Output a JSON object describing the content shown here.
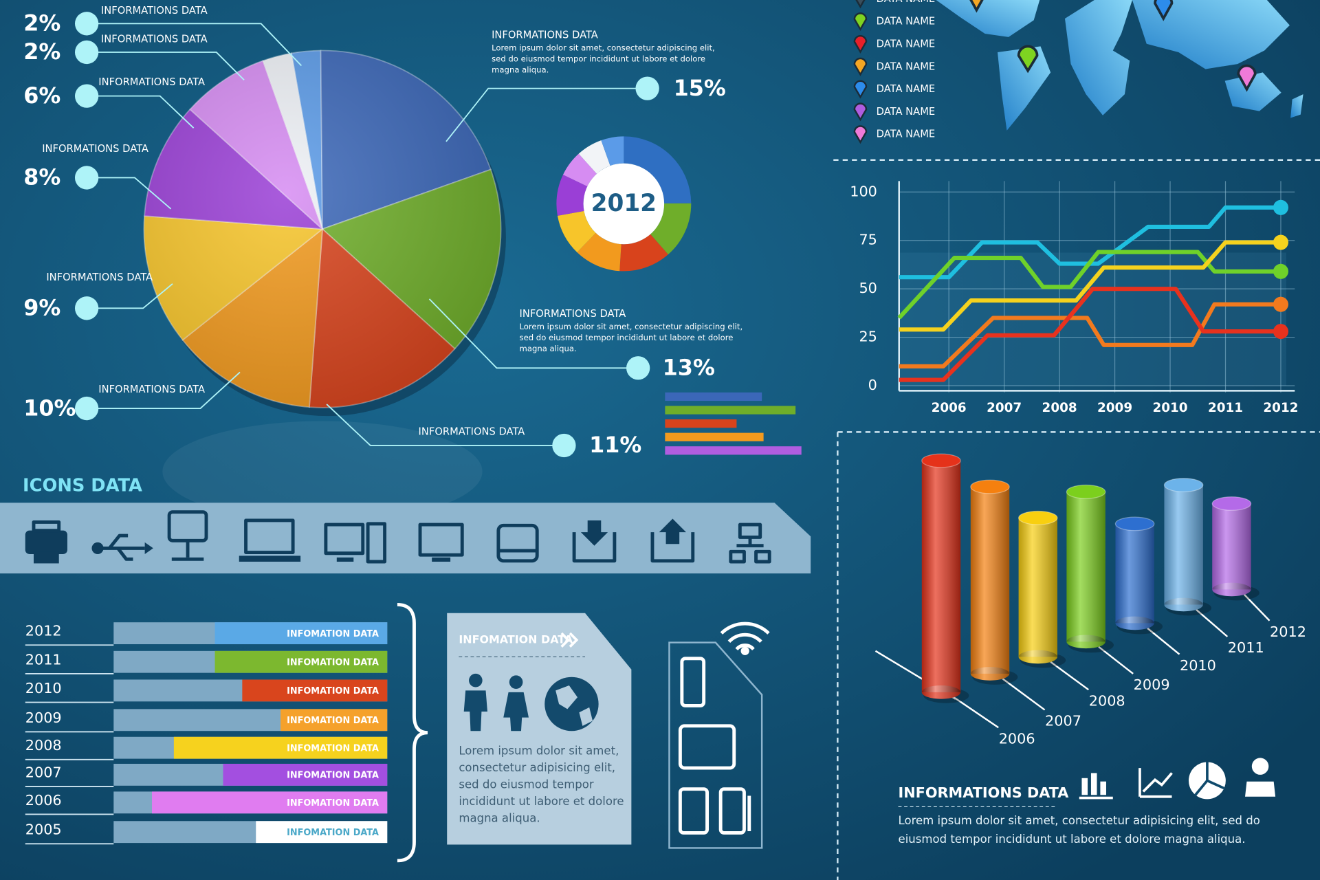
{
  "chart_data": [
    {
      "type": "pie",
      "categories": [
        "INFORMATIONS DATA",
        "INFORMATIONS DATA",
        "INFORMATIONS DATA",
        "INFORMATIONS DATA",
        "INFORMATIONS DATA",
        "INFORMATIONS DATA",
        "INFORMATIONS DATA",
        "INFORMATIONS DATA",
        "INFORMATIONS DATA"
      ],
      "values": [
        2,
        15,
        13,
        11,
        10,
        9,
        8,
        6,
        2
      ],
      "value_labels": [
        "2%",
        "15%",
        "13%",
        "11%",
        "10%",
        "9%",
        "8%",
        "6%",
        "2%"
      ],
      "descriptions": [
        null,
        "Lorem ipsum dolor sit amet, consectetur adipiscing elit, sed do eiusmod tempor incididunt ut labore et dolore magna aliqua.",
        "Lorem ipsum dolor sit amet, consectetur adipiscing elit, sed do eiusmod tempor incididunt ut labore et dolore magna aliqua.",
        null,
        null,
        null,
        null,
        null,
        null
      ],
      "colors": [
        "#5b9be8",
        "#3b67b8",
        "#6fae2a",
        "#d8431c",
        "#f29a1e",
        "#f7c52a",
        "#9a3fd6",
        "#d68cf2",
        "#eef1f6"
      ]
    },
    {
      "type": "line",
      "xlim": [
        2005.1,
        2012.1
      ],
      "xticks": [
        2006,
        2007,
        2008,
        2009,
        2010,
        2011,
        2012
      ],
      "ylim": [
        0,
        100
      ],
      "yticks": [
        0,
        25,
        50,
        75,
        100
      ],
      "grid": true,
      "series": [
        {
          "color": "#1fbfe0",
          "x": [
            2005.1,
            2006,
            2006.6,
            2007.6,
            2008,
            2008.7,
            2009.6,
            2010.7,
            2011,
            2012
          ],
          "values": [
            56,
            56,
            74,
            74,
            63,
            63,
            82,
            82,
            92,
            92
          ]
        },
        {
          "color": "#6fd12a",
          "x": [
            2005.1,
            2006.1,
            2007.3,
            2007.7,
            2008.2,
            2008.7,
            2010.5,
            2010.8,
            2012
          ],
          "values": [
            35,
            66,
            66,
            51,
            51,
            69,
            69,
            59,
            59
          ]
        },
        {
          "color": "#f5d21e",
          "x": [
            2005.1,
            2005.9,
            2006.4,
            2008.3,
            2008.8,
            2010.6,
            2011,
            2012
          ],
          "values": [
            29,
            29,
            44,
            44,
            61,
            61,
            74,
            74
          ]
        },
        {
          "color": "#f27a1e",
          "x": [
            2005.1,
            2005.9,
            2006.8,
            2008.5,
            2008.8,
            2010.4,
            2010.8,
            2012
          ],
          "values": [
            10,
            10,
            35,
            35,
            21,
            21,
            42,
            42
          ]
        },
        {
          "color": "#e8321e",
          "x": [
            2005.1,
            2005.9,
            2006.7,
            2007.9,
            2008.6,
            2010.1,
            2010.6,
            2012
          ],
          "values": [
            3,
            3,
            26,
            26,
            50,
            50,
            28,
            28
          ]
        }
      ]
    },
    {
      "type": "cylinder",
      "categories": [
        "2006",
        "2007",
        "2008",
        "2009",
        "2010",
        "2011",
        "2012"
      ],
      "values": [
        275,
        222,
        165,
        178,
        118,
        142,
        102
      ],
      "colors": [
        "#e5321a",
        "#f5800f",
        "#f8cf10",
        "#7ccf1d",
        "#2d6fd0",
        "#6cb3ea",
        "#b46ae8"
      ]
    },
    {
      "type": "hbar",
      "categories": [
        "2012",
        "2011",
        "2010",
        "2009",
        "2008",
        "2007",
        "2006",
        "2005"
      ],
      "values": [
        63,
        63,
        53,
        39,
        78,
        60,
        86,
        48
      ],
      "xlim": [
        0,
        100
      ],
      "bar_label": "INFOMATION DATA",
      "colors": [
        "#5aa9e6",
        "#7cb82f",
        "#d9451d",
        "#f5a12b",
        "#f6d21e",
        "#a34fe0",
        "#e07cf0",
        "#ffffff"
      ]
    }
  ],
  "donut": {
    "label": "2012"
  },
  "icons_section": {
    "title": "ICONS DATA"
  },
  "map_legend": {
    "items": [
      "DATA NAME",
      "DATA NAME",
      "DATA NAME",
      "DATA NAME",
      "DATA NAME",
      "DATA NAME",
      "DATA NAME"
    ],
    "colors": [
      "#3a4e5c",
      "#7ed321",
      "#e8202a",
      "#f5a623",
      "#2d8ceb",
      "#b05de0",
      "#f07ad8"
    ]
  },
  "info_card": {
    "title": "INFOMATION DATA",
    "text": "Lorem ipsum dolor sit amet, consectetur adipisicing elit, sed do eiusmod tempor incididunt ut labore et dolore magna aliqua."
  },
  "footer_info": {
    "title": "INFORMATIONS DATA",
    "text": "Lorem ipsum dolor sit amet, consectetur adipisicing elit, sed do eiusmod tempor incididunt ut labore et dolore magna aliqua."
  }
}
